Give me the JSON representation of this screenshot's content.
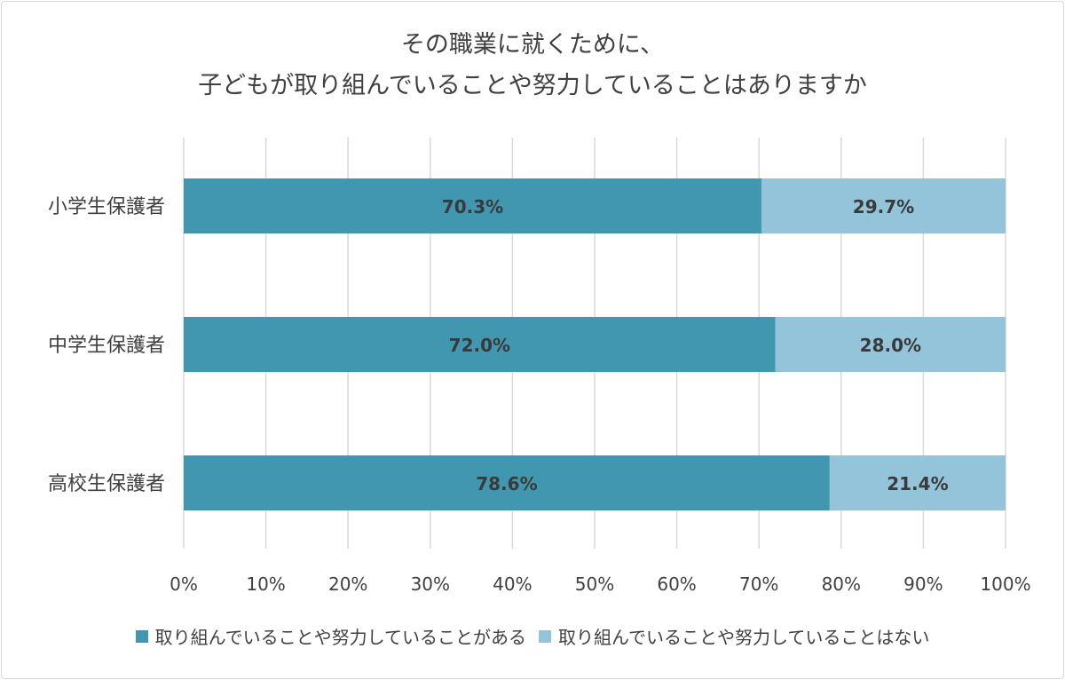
{
  "title_lines": [
    "その職業に就くために、",
    "子どもが取り組んでいることや努力していることはありますか"
  ],
  "colors": {
    "series1": "#4197b0",
    "series2": "#94c4da",
    "grid": "#d9d9d9",
    "text": "#404040",
    "label": "#3a3a3a"
  },
  "chart_data": {
    "type": "bar",
    "orientation": "horizontal",
    "stacked": true,
    "categories": [
      "小学生保護者",
      "中学生保護者",
      "高校生保護者"
    ],
    "series": [
      {
        "name": "取り組んでいることや努力していることがある",
        "values": [
          70.3,
          72.0,
          78.6
        ],
        "labels": [
          "70.3%",
          "72.0%",
          "78.6%"
        ]
      },
      {
        "name": "取り組んでいることや努力していることはない",
        "values": [
          29.7,
          28.0,
          21.4
        ],
        "labels": [
          "29.7%",
          "28.0%",
          "21.4%"
        ]
      }
    ],
    "xlim": [
      0,
      100
    ],
    "xticks": [
      "0%",
      "10%",
      "20%",
      "30%",
      "40%",
      "50%",
      "60%",
      "70%",
      "80%",
      "90%",
      "100%"
    ],
    "grid": "vertical",
    "legend": "bottom"
  }
}
